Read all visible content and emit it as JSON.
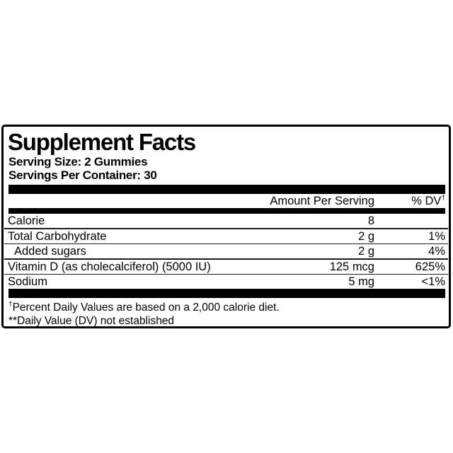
{
  "panel": {
    "title": "Supplement Facts",
    "serving_size": "Serving Size: 2 Gummies",
    "servings_per_container": "Servings Per Container: 30",
    "columns": {
      "amount": "Amount Per Serving",
      "dv": "% DV",
      "dv_sup": "†"
    },
    "rows": [
      {
        "name": "Calorie",
        "amount": "8",
        "dv": "",
        "indent": false
      },
      {
        "name": "Total Carbohydrate",
        "amount": "2 g",
        "dv": "1%",
        "indent": false
      },
      {
        "name": "Added sugars",
        "amount": "2 g",
        "dv": "4%",
        "indent": true
      },
      {
        "name": "Vitamin D (as cholecalciferol) (5000 IU)",
        "amount": "125 mcg",
        "dv": "625%",
        "indent": false
      },
      {
        "name": "Sodium",
        "amount": "5 mg",
        "dv": "<1%",
        "indent": false
      }
    ],
    "footnotes": [
      {
        "sup": "†",
        "text": "Percent Daily Values are based on a 2,000 calorie diet."
      },
      {
        "sup": "",
        "text": "**Daily Value (DV) not established"
      }
    ],
    "colors": {
      "text": "#000000",
      "background": "#ffffff",
      "border": "#000000",
      "divider": "#000000"
    }
  }
}
